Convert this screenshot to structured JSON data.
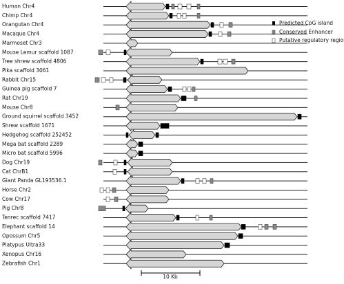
{
  "rows": [
    "Human Chr4",
    "Chimp Chr4",
    "Orangutan Chr4",
    "Macaque Chr4",
    "Marmoset Chr3",
    "Mouse Lemur scaffold 1087",
    "Tree shrew scaffold 4806",
    "Pika scaffold 3061",
    "Rabbit Chr15",
    "Guinea pig scaffold 7",
    "Rat Chr19",
    "Mouse Chr8",
    "Ground squirrel scaffold 3452",
    "Shrew scaffold 1671",
    "Hedgehog scaffold 252452",
    "Mega bat scaffold 2289",
    "Micro bat scaffold 5996",
    "Dog Chr19",
    "Cat ChrB1",
    "Giant Panda GL193536.1",
    "Horse Chr2",
    "Cow Chr17",
    "Pig Chr8",
    "Tenrec scaffold 7417",
    "Elephant scaffold 14",
    "Opossum Chr5",
    "Platypus Ultra33",
    "Xenopus Chr16",
    "Zebrafish Chr1"
  ],
  "legend": [
    "Predicted CpG island",
    "Conserved Enhancer",
    "Putative regulatory region"
  ],
  "scale_label": "10 Kb"
}
